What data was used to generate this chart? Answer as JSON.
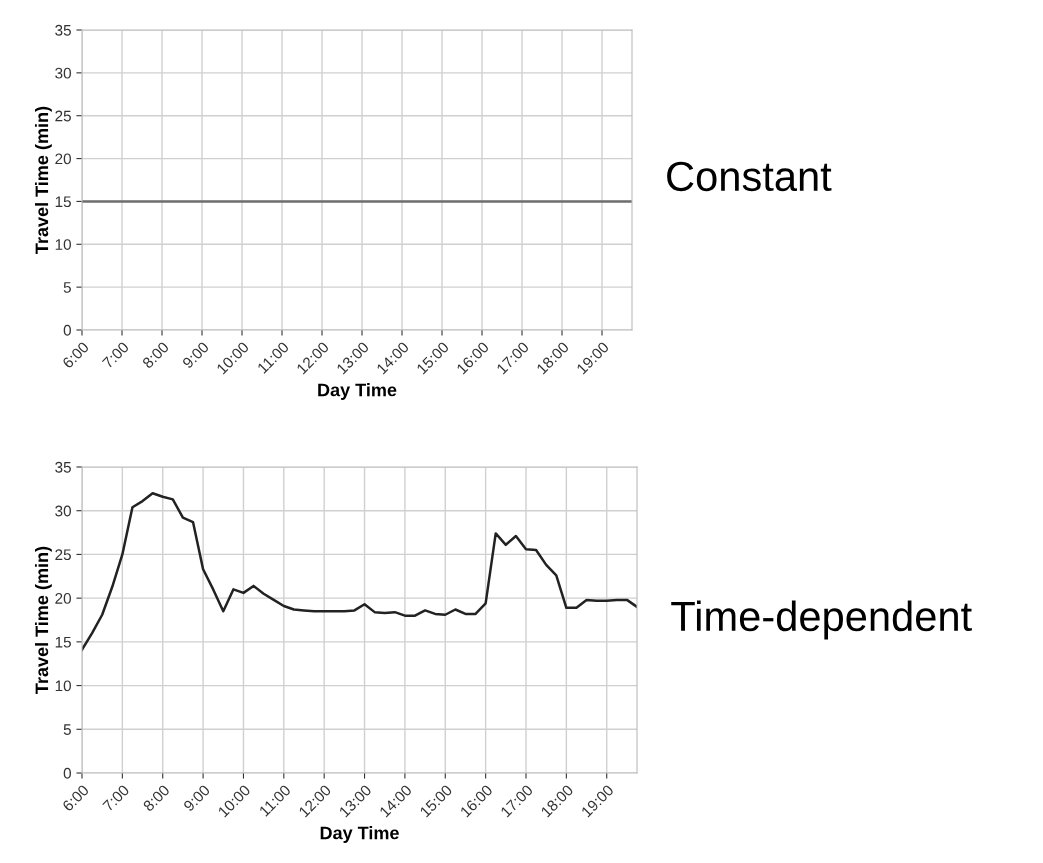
{
  "chart_data": [
    {
      "type": "line",
      "annotations": [
        "Constant"
      ],
      "xlabel": "Day Time",
      "ylabel": "Travel Time (min)",
      "series": [
        {
          "color": "#6e6e6e",
          "x": [
            6,
            19.75
          ],
          "values": [
            15,
            15
          ]
        }
      ],
      "xlim": [
        6,
        19.75
      ],
      "ylim": [
        0,
        35
      ],
      "yticks": [
        0,
        5,
        10,
        15,
        20,
        25,
        30,
        35
      ],
      "xticks": [
        {
          "value": 6,
          "label": "6:00"
        },
        {
          "value": 7,
          "label": "7:00"
        },
        {
          "value": 8,
          "label": "8:00"
        },
        {
          "value": 9,
          "label": "9:00"
        },
        {
          "value": 10,
          "label": "10:00"
        },
        {
          "value": 11,
          "label": "11:00"
        },
        {
          "value": 12,
          "label": "12:00"
        },
        {
          "value": 13,
          "label": "13:00"
        },
        {
          "value": 14,
          "label": "14:00"
        },
        {
          "value": 15,
          "label": "15:00"
        },
        {
          "value": 16,
          "label": "16:00"
        },
        {
          "value": 17,
          "label": "17:00"
        },
        {
          "value": 18,
          "label": "18:00"
        },
        {
          "value": 19,
          "label": "19:00"
        }
      ],
      "grid": true,
      "marker": "none",
      "line_style": "solid"
    },
    {
      "type": "line",
      "annotations": [
        "Time-dependent"
      ],
      "xlabel": "Day Time",
      "ylabel": "Travel Time (min)",
      "series": [
        {
          "color": "#222222",
          "x": [
            6,
            6.25,
            6.5,
            6.75,
            7,
            7.25,
            7.5,
            7.75,
            8,
            8.25,
            8.5,
            8.75,
            9,
            9.25,
            9.5,
            9.75,
            10,
            10.25,
            10.5,
            10.75,
            11,
            11.25,
            11.5,
            11.75,
            12,
            12.25,
            12.5,
            12.75,
            13,
            13.25,
            13.5,
            13.75,
            14,
            14.25,
            14.5,
            14.75,
            15,
            15.25,
            15.5,
            15.75,
            16,
            16.25,
            16.5,
            16.75,
            17,
            17.25,
            17.5,
            17.75,
            18,
            18.25,
            18.5,
            18.75,
            19,
            19.25,
            19.5,
            19.75
          ],
          "values": [
            14.1,
            16.0,
            18.1,
            21.3,
            25.0,
            30.4,
            31.1,
            32.0,
            31.6,
            31.3,
            29.2,
            28.7,
            23.3,
            21.0,
            18.5,
            21.0,
            20.6,
            21.4,
            20.5,
            19.8,
            19.1,
            18.7,
            18.6,
            18.5,
            18.5,
            18.5,
            18.5,
            18.6,
            19.3,
            18.4,
            18.3,
            18.4,
            18.0,
            18.0,
            18.6,
            18.2,
            18.1,
            18.7,
            18.2,
            18.2,
            19.4,
            27.4,
            26.1,
            27.1,
            25.6,
            25.5,
            23.8,
            22.6,
            18.9,
            18.9,
            19.8,
            19.7,
            19.7,
            19.8,
            19.8,
            19.0
          ]
        }
      ],
      "xlim": [
        6,
        19.75
      ],
      "ylim": [
        0,
        35
      ],
      "yticks": [
        0,
        5,
        10,
        15,
        20,
        25,
        30,
        35
      ],
      "xticks": [
        {
          "value": 6,
          "label": "6:00"
        },
        {
          "value": 7,
          "label": "7:00"
        },
        {
          "value": 8,
          "label": "8:00"
        },
        {
          "value": 9,
          "label": "9:00"
        },
        {
          "value": 10,
          "label": "10:00"
        },
        {
          "value": 11,
          "label": "11:00"
        },
        {
          "value": 12,
          "label": "12:00"
        },
        {
          "value": 13,
          "label": "13:00"
        },
        {
          "value": 14,
          "label": "14:00"
        },
        {
          "value": 15,
          "label": "15:00"
        },
        {
          "value": 16,
          "label": "16:00"
        },
        {
          "value": 17,
          "label": "17:00"
        },
        {
          "value": 18,
          "label": "18:00"
        },
        {
          "value": 19,
          "label": "19:00"
        }
      ],
      "grid": true,
      "marker": "none",
      "line_style": "solid"
    }
  ]
}
